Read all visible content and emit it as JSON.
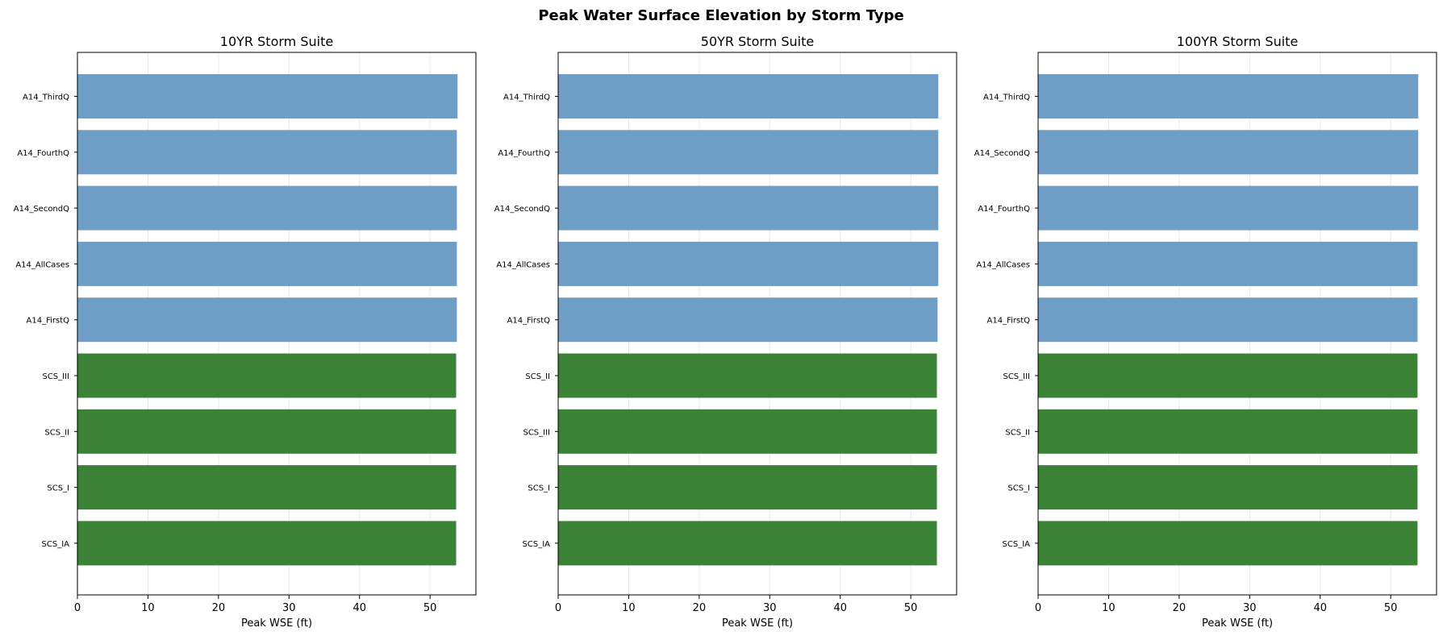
{
  "title": "Peak Water Surface Elevation by Storm Type",
  "colors": {
    "a14": "#6e9ec6",
    "scs": "#3a8235"
  },
  "chart_data": [
    {
      "type": "bar",
      "orientation": "horizontal",
      "title": "10YR Storm Suite",
      "xlabel": "Peak WSE (ft)",
      "ylabel": "",
      "xlim": [
        0,
        56.5
      ],
      "xticks": [
        0,
        10,
        20,
        30,
        40,
        50
      ],
      "grid": "x",
      "categories": [
        "A14_ThirdQ",
        "A14_FourthQ",
        "A14_SecondQ",
        "A14_AllCases",
        "A14_FirstQ",
        "SCS_III",
        "SCS_II",
        "SCS_I",
        "SCS_IA"
      ],
      "values": [
        53.9,
        53.8,
        53.8,
        53.8,
        53.8,
        53.7,
        53.7,
        53.7,
        53.7
      ],
      "groups": [
        "a14",
        "a14",
        "a14",
        "a14",
        "a14",
        "scs",
        "scs",
        "scs",
        "scs"
      ]
    },
    {
      "type": "bar",
      "orientation": "horizontal",
      "title": "50YR Storm Suite",
      "xlabel": "Peak WSE (ft)",
      "ylabel": "",
      "xlim": [
        0,
        56.5
      ],
      "xticks": [
        0,
        10,
        20,
        30,
        40,
        50
      ],
      "grid": "x",
      "categories": [
        "A14_ThirdQ",
        "A14_FourthQ",
        "A14_SecondQ",
        "A14_AllCases",
        "A14_FirstQ",
        "SCS_II",
        "SCS_III",
        "SCS_I",
        "SCS_IA"
      ],
      "values": [
        53.9,
        53.9,
        53.9,
        53.9,
        53.8,
        53.7,
        53.7,
        53.7,
        53.7
      ],
      "groups": [
        "a14",
        "a14",
        "a14",
        "a14",
        "a14",
        "scs",
        "scs",
        "scs",
        "scs"
      ]
    },
    {
      "type": "bar",
      "orientation": "horizontal",
      "title": "100YR Storm Suite",
      "xlabel": "Peak WSE (ft)",
      "ylabel": "",
      "xlim": [
        0,
        56.5
      ],
      "xticks": [
        0,
        10,
        20,
        30,
        40,
        50
      ],
      "grid": "x",
      "categories": [
        "A14_ThirdQ",
        "A14_SecondQ",
        "A14_FourthQ",
        "A14_AllCases",
        "A14_FirstQ",
        "SCS_III",
        "SCS_II",
        "SCS_I",
        "SCS_IA"
      ],
      "values": [
        53.9,
        53.9,
        53.9,
        53.8,
        53.8,
        53.8,
        53.8,
        53.8,
        53.8
      ],
      "groups": [
        "a14",
        "a14",
        "a14",
        "a14",
        "a14",
        "scs",
        "scs",
        "scs",
        "scs"
      ]
    }
  ]
}
